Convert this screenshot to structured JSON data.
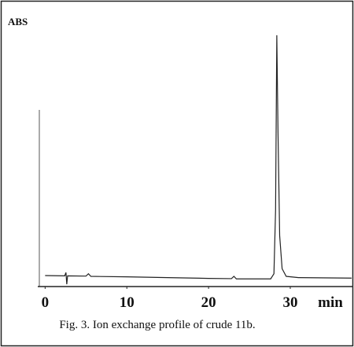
{
  "chart_data": {
    "type": "line",
    "y_axis_label": "ABS",
    "x_axis_label": "min",
    "caption": "Fig. 3. Ion exchange profile of crude 11b.",
    "x": [
      0,
      2.4,
      2.55,
      2.65,
      2.75,
      5.0,
      5.3,
      5.6,
      10,
      15,
      20,
      22.8,
      23.1,
      23.4,
      27.6,
      28.0,
      28.2,
      28.35,
      28.5,
      28.7,
      29.0,
      29.5,
      31,
      37.5
    ],
    "values": [
      4.3,
      4.2,
      5.5,
      0.9,
      4.2,
      4.1,
      5.0,
      4.0,
      3.8,
      3.5,
      3.2,
      3.1,
      4.0,
      3.0,
      3.0,
      5.0,
      30,
      98.5,
      60,
      20,
      7,
      4,
      3.5,
      3.3
    ],
    "color": "#222",
    "xlim": [
      -0.9,
      37.7
    ],
    "xticks": [
      0,
      10,
      20,
      30
    ],
    "ylim": [
      0,
      100
    ]
  }
}
